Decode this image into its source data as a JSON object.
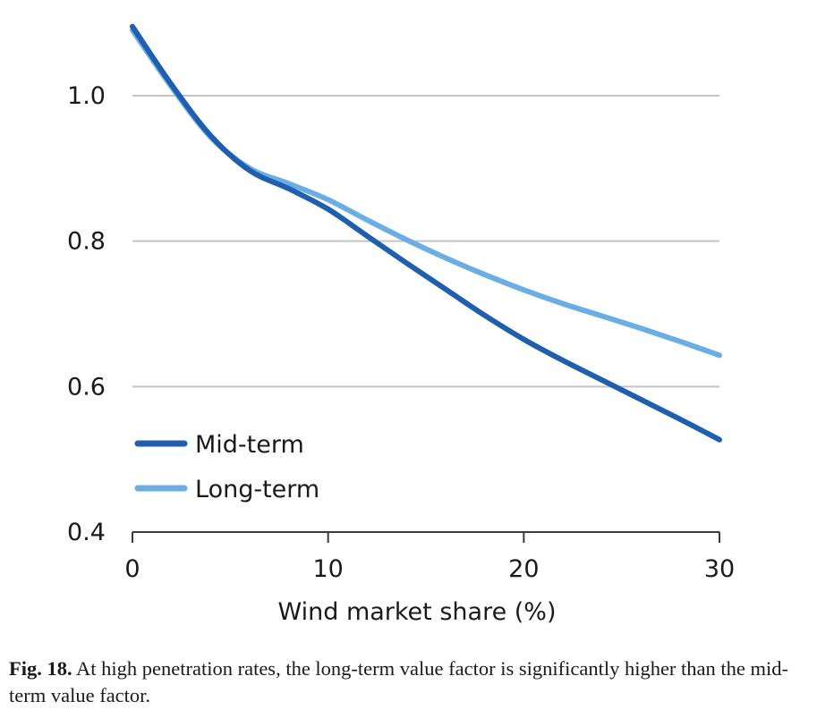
{
  "chart_data": {
    "type": "line",
    "title": "",
    "xlabel": "Wind market share (%)",
    "ylabel": "",
    "xlim": [
      0,
      30
    ],
    "ylim": [
      0.4,
      1.1
    ],
    "xticks": [
      0,
      10,
      20,
      30
    ],
    "xtick_labels": [
      "0",
      "10",
      "20",
      "30"
    ],
    "yticks": [
      0.4,
      0.6,
      0.8,
      1.0
    ],
    "ytick_labels": [
      "0.4",
      "0.6",
      "0.8",
      "1.0"
    ],
    "gridlines": [
      0.6,
      0.8,
      1.0
    ],
    "legend_position": "bottom-left",
    "series": [
      {
        "name": "Mid-term",
        "color": "#1f5fae",
        "x": [
          0,
          2,
          4,
          6,
          8,
          10,
          12,
          14,
          16,
          18,
          20,
          22,
          24,
          26,
          28,
          30
        ],
        "y": [
          1.095,
          1.015,
          0.945,
          0.897,
          0.872,
          0.844,
          0.807,
          0.77,
          0.734,
          0.698,
          0.665,
          0.636,
          0.609,
          0.582,
          0.555,
          0.527
        ]
      },
      {
        "name": "Long-term",
        "color": "#6aaee3",
        "x": [
          0,
          2,
          4,
          6,
          8,
          10,
          12,
          14,
          16,
          18,
          20,
          22,
          24,
          26,
          28,
          30
        ],
        "y": [
          1.09,
          1.012,
          0.943,
          0.9,
          0.879,
          0.857,
          0.829,
          0.802,
          0.777,
          0.754,
          0.733,
          0.714,
          0.697,
          0.68,
          0.662,
          0.643
        ]
      }
    ]
  },
  "caption": {
    "label": "Fig. 18.",
    "text": " At high penetration rates, the long-term value factor is significantly higher than the mid-term value factor."
  }
}
